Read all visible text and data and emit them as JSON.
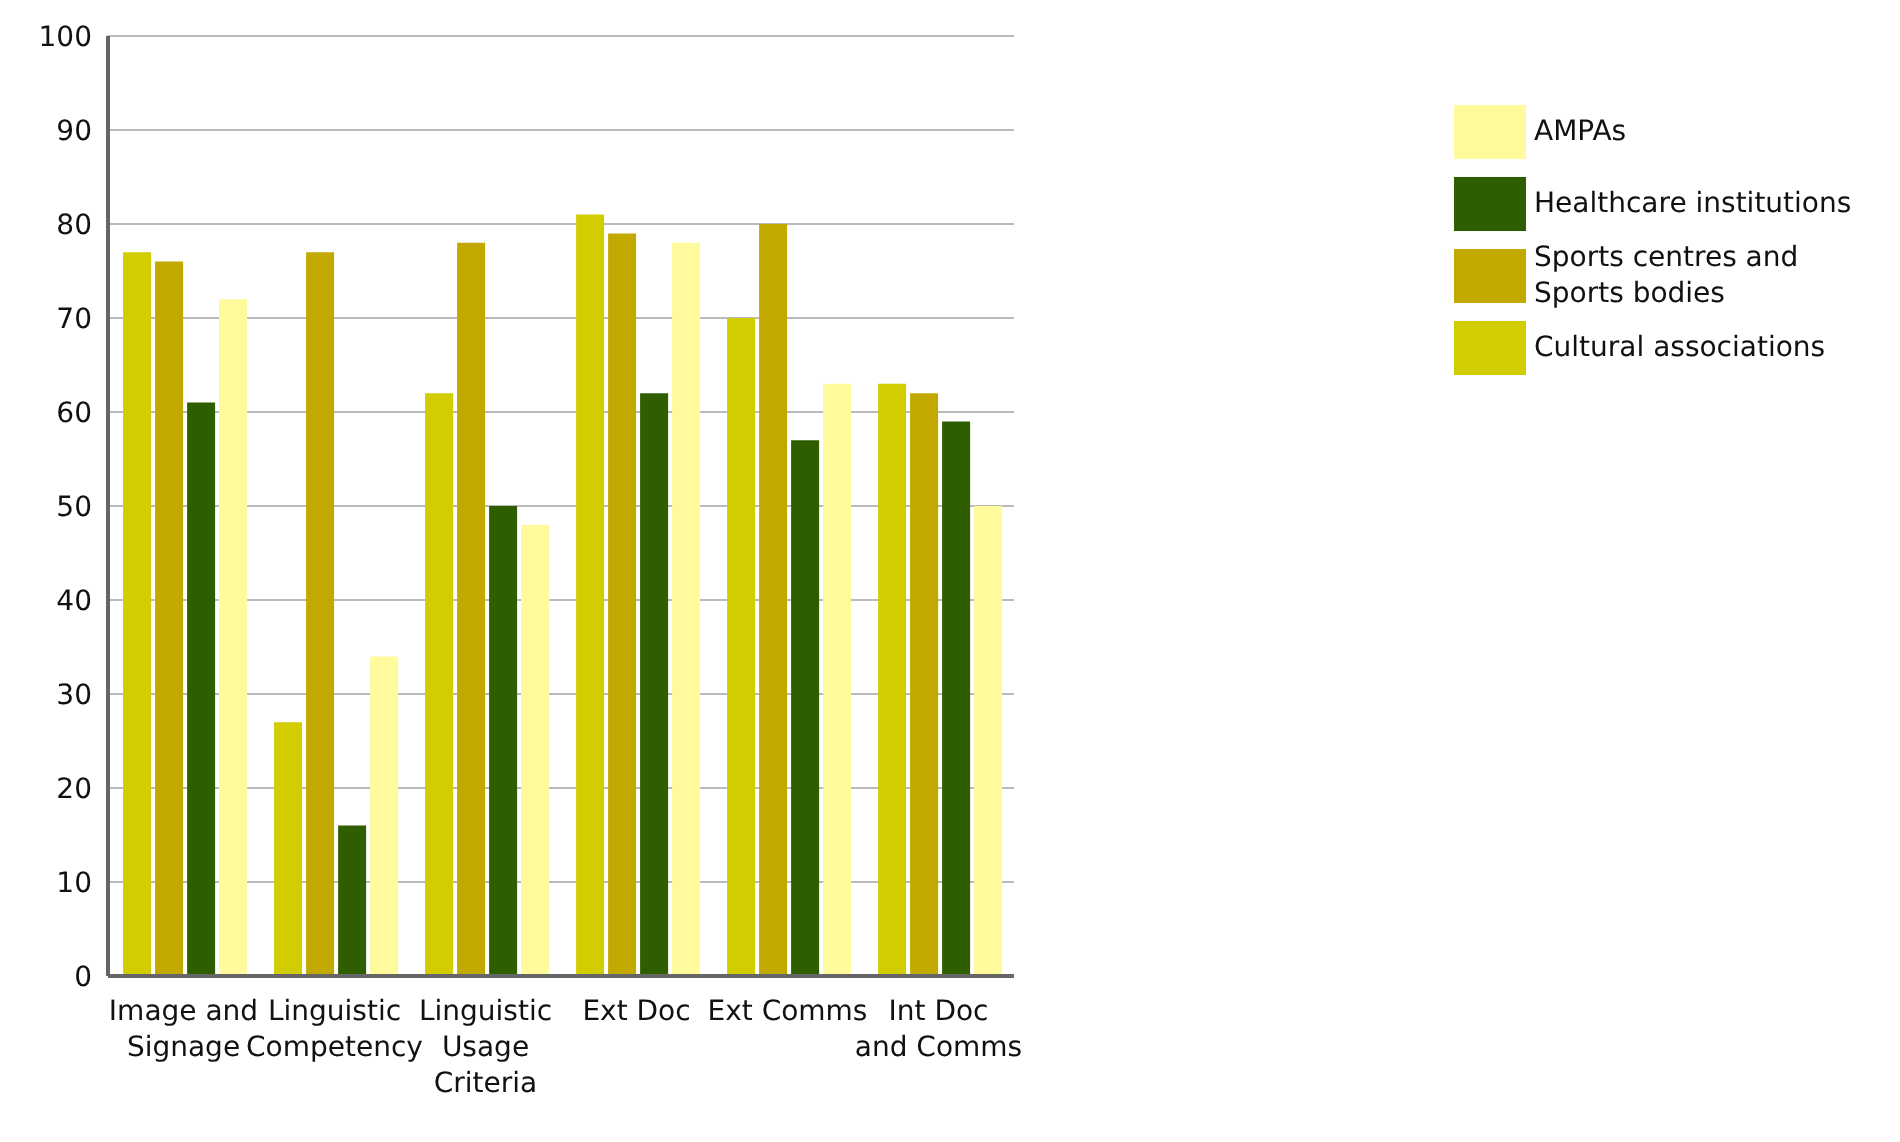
{
  "chart_data": {
    "type": "bar",
    "categories": [
      "Image and Signage",
      "Linguistic Competency",
      "Linguistic Usage Criteria",
      "Ext Doc",
      "Ext Comms",
      "Int Doc and Comms"
    ],
    "series": [
      {
        "name": "Cultural associations",
        "color": "#d1cd00",
        "values": [
          77,
          27,
          62,
          81,
          70,
          63
        ]
      },
      {
        "name": "Sports centres and Sports bodies",
        "color": "#c1a900",
        "values": [
          76,
          77,
          78,
          79,
          80,
          62
        ]
      },
      {
        "name": "Healthcare institutions",
        "color": "#2f5e00",
        "values": [
          61,
          16,
          50,
          62,
          57,
          59
        ]
      },
      {
        "name": "AMPAs",
        "color": "#fffa9c",
        "values": [
          72,
          34,
          48,
          78,
          63,
          50
        ]
      }
    ],
    "ylim": [
      0,
      100
    ],
    "yticks": [
      0,
      10,
      20,
      30,
      40,
      50,
      60,
      70,
      80,
      90,
      100
    ],
    "grid": "y",
    "legend": "right"
  }
}
